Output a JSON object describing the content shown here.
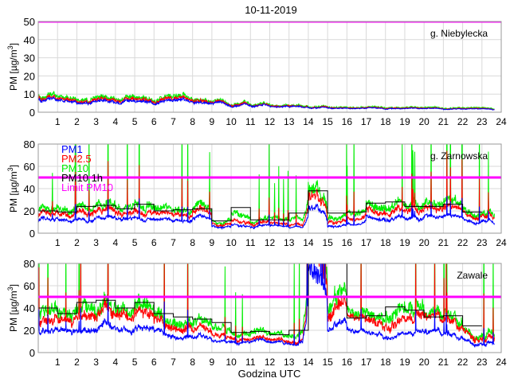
{
  "chart_data": {
    "type": "line",
    "title": "10-11-2019",
    "xlabel": "Godzina UTC",
    "ylabel": "PM [µg/m",
    "ylabel_sup": "3",
    "ylabel_end": "]",
    "xlim": [
      0,
      24
    ],
    "xticks": [
      1,
      2,
      3,
      4,
      5,
      6,
      7,
      8,
      9,
      10,
      11,
      12,
      13,
      14,
      15,
      16,
      17,
      18,
      19,
      20,
      21,
      22,
      23,
      24
    ],
    "grid": true,
    "limit_value": 50,
    "legend": {
      "placement": "top-left of second panel",
      "entries": [
        {
          "label": "PM1",
          "color": "#0000ff"
        },
        {
          "label": "PM2.5",
          "color": "#ff0000"
        },
        {
          "label": "PM10",
          "color": "#00ee00"
        },
        {
          "label": "PM10 1h",
          "color": "#000000"
        },
        {
          "label": "Limit PM10",
          "color": "#ff00ff"
        }
      ]
    },
    "colors": {
      "PM1": "#0000ff",
      "PM2.5": "#ff0000",
      "PM10": "#00ee00",
      "PM10 1h": "#000000",
      "limit": "#ff00ff"
    },
    "panels": [
      {
        "station": "g. Niebylecka",
        "ylim": [
          0,
          50
        ],
        "yticks": [
          0,
          10,
          20,
          30,
          40,
          50
        ],
        "series_hourly_mean": {
          "PM1": [
            6.5,
            6.5,
            6,
            6,
            6,
            6,
            6,
            6,
            5.5,
            5,
            4,
            3.5,
            3,
            2.8,
            2.5,
            2,
            1.8,
            1.8,
            1.8,
            1.8,
            1.8,
            1.6,
            1.5,
            1.5
          ],
          "PM2.5": [
            7.5,
            7.5,
            7,
            7,
            7,
            7,
            7,
            7,
            6.5,
            5.5,
            4.5,
            3.8,
            3.3,
            3,
            2.7,
            2.2,
            2,
            2,
            2,
            2,
            2,
            1.8,
            1.7,
            1.7
          ],
          "PM10": [
            8.5,
            8.5,
            8,
            8,
            8,
            8,
            8,
            8,
            7,
            6,
            5,
            4.2,
            3.6,
            3.3,
            3,
            2.5,
            2.3,
            2.3,
            2.3,
            2.3,
            2.3,
            2.1,
            2,
            2
          ]
        },
        "pm10_1h": []
      },
      {
        "station": "g. Zarnowska",
        "ylim": [
          0,
          80
        ],
        "yticks": [
          0,
          20,
          40,
          60,
          80
        ],
        "series_hourly_mean": {
          "PM1": [
            12,
            11,
            12,
            14,
            13,
            13,
            11,
            11,
            14,
            6,
            8,
            7,
            6,
            5,
            22,
            7,
            7,
            15,
            14,
            13,
            14,
            14,
            11,
            12
          ],
          "PM2.5": [
            17,
            16,
            19,
            21,
            18,
            19,
            16,
            16,
            20,
            8,
            12,
            10,
            8,
            7,
            32,
            11,
            11,
            22,
            21,
            20,
            21,
            21,
            16,
            17
          ],
          "PM10": [
            21,
            20,
            24,
            26,
            23,
            25,
            20,
            20,
            24,
            10,
            20,
            13,
            12,
            12,
            38,
            15,
            16,
            27,
            27,
            25,
            25,
            26,
            19,
            20
          ]
        },
        "pm10_1h": [
          20,
          19,
          24,
          25,
          22,
          26,
          20,
          21,
          22,
          11,
          23,
          12,
          12,
          18,
          38,
          18,
          19,
          27,
          28,
          24,
          24,
          26,
          19
        ]
      },
      {
        "station": "Zawale",
        "ylim": [
          0,
          80
        ],
        "yticks": [
          0,
          20,
          40,
          60,
          80
        ],
        "series_hourly_mean": {
          "PM1": [
            20,
            20,
            21,
            27,
            21,
            23,
            20,
            17,
            15,
            10,
            10,
            11,
            9,
            9,
            80,
            25,
            17,
            17,
            17,
            17,
            17,
            16,
            13,
            12
          ],
          "PM2.5": [
            30,
            29,
            35,
            42,
            35,
            38,
            30,
            27,
            23,
            15,
            13,
            13,
            11,
            11,
            100,
            40,
            28,
            28,
            30,
            30,
            29,
            28,
            22,
            19
          ],
          "PM10": [
            40,
            35,
            45,
            47,
            40,
            45,
            35,
            32,
            30,
            22,
            18,
            19,
            16,
            18,
            110,
            50,
            31,
            33,
            41,
            38,
            32,
            33,
            24,
            24
          ]
        },
        "pm10_1h": [
          40,
          35,
          45,
          47,
          40,
          45,
          35,
          32,
          30,
          27,
          18,
          19,
          16,
          20,
          120,
          90,
          31,
          33,
          41,
          38,
          32,
          33,
          24
        ]
      }
    ]
  }
}
